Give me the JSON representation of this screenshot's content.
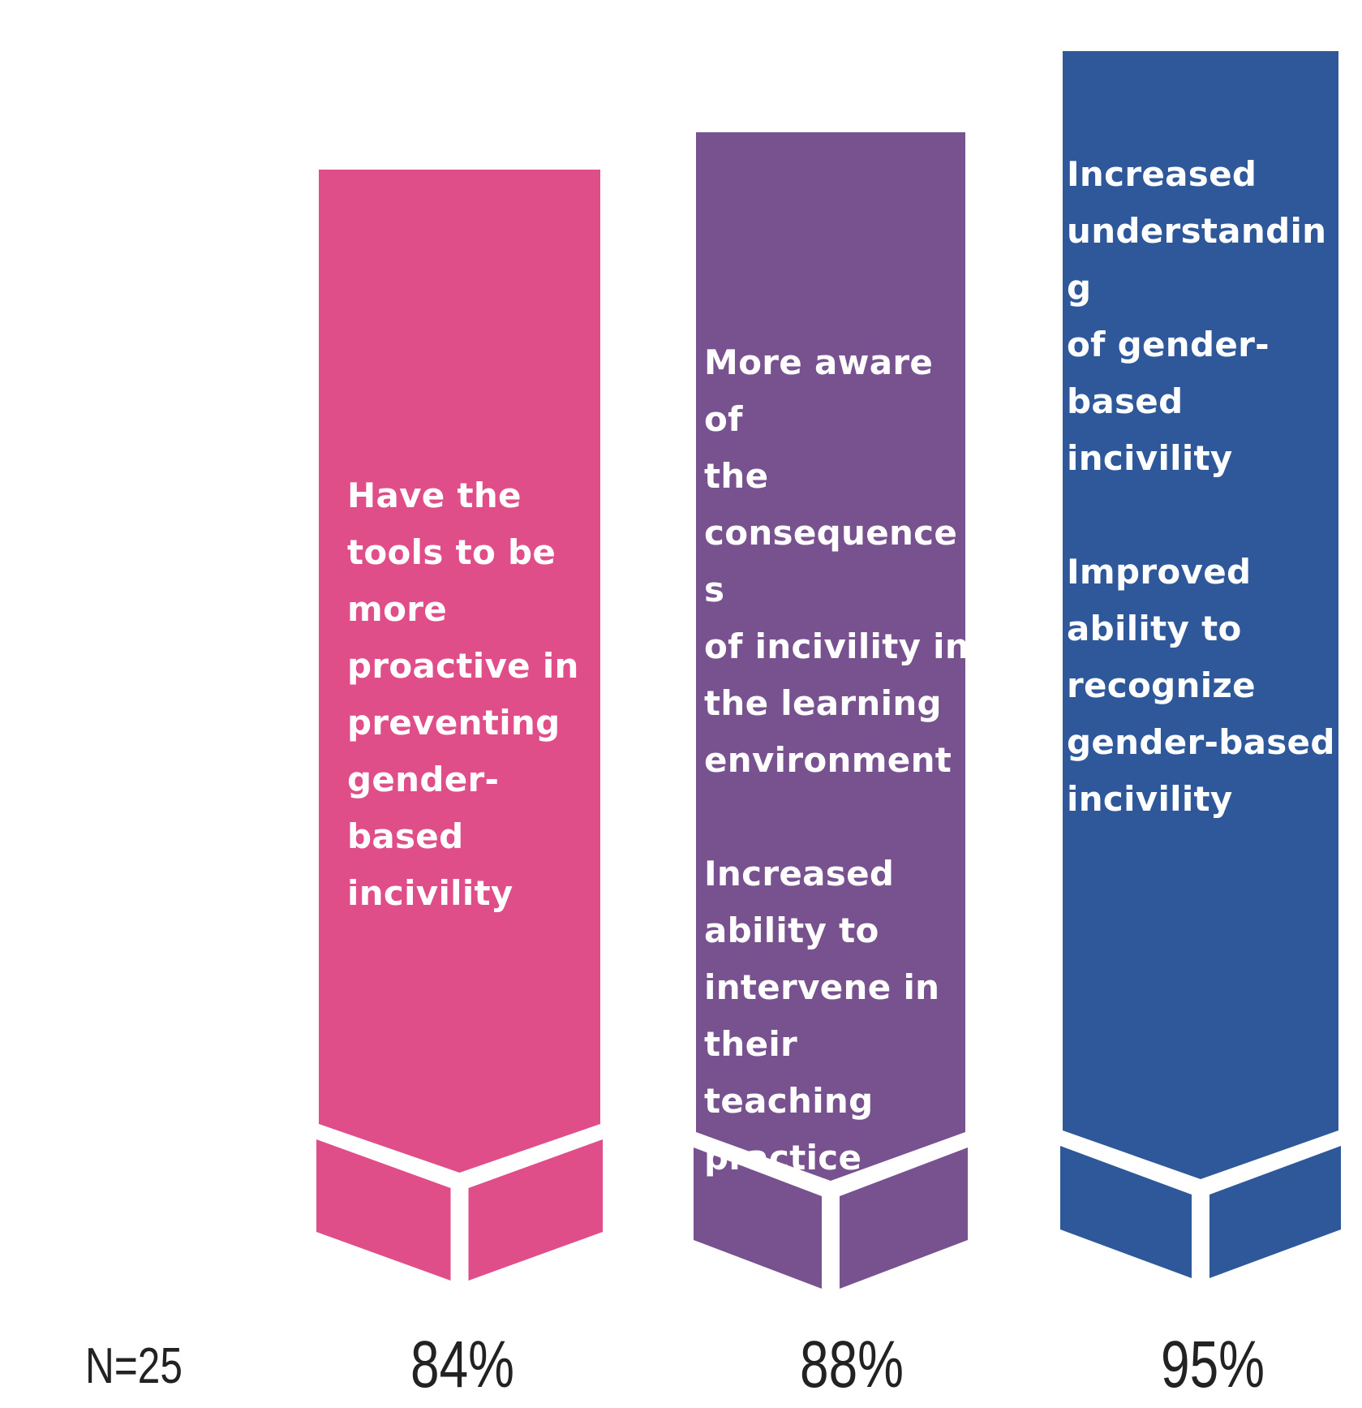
{
  "chart_data": {
    "type": "bar",
    "categories": [
      "Have the tools to be more proactive in preventing gender-based incivility",
      "More aware of the consequences of incivility in the learning environment / Increased ability to intervene in their teaching practice",
      "Increased understanding of gender-based incivility / Improved ability to recognize gender-based incivility"
    ],
    "values": [
      84,
      88,
      95
    ],
    "value_labels": [
      "84%",
      "88%",
      "95%"
    ],
    "bars": [
      {
        "value": 84,
        "value_label": "84%",
        "color": "#e04e8a",
        "paragraphs": [
          "Have the\ntools to be\nmore\nproactive in\npreventing\ngender-\nbased\nincivility"
        ]
      },
      {
        "value": 88,
        "value_label": "88%",
        "color": "#77528f",
        "paragraphs": [
          "More aware of\nthe\nconsequences\nof incivility in\nthe learning\nenvironment",
          "Increased\nability to\nintervene in\ntheir teaching\npractice"
        ]
      },
      {
        "value": 95,
        "value_label": "95%",
        "color": "#2e5899",
        "paragraphs": [
          "Increased\nunderstanding\nof gender-\nbased incivility",
          "Improved\nability to\nrecognize\ngender-based\nincivility"
        ]
      }
    ],
    "sample_size_label": "N=25",
    "title": "",
    "xlabel": "",
    "ylabel": "",
    "ylim": [
      0,
      100
    ],
    "grid": false,
    "legend": "none"
  }
}
